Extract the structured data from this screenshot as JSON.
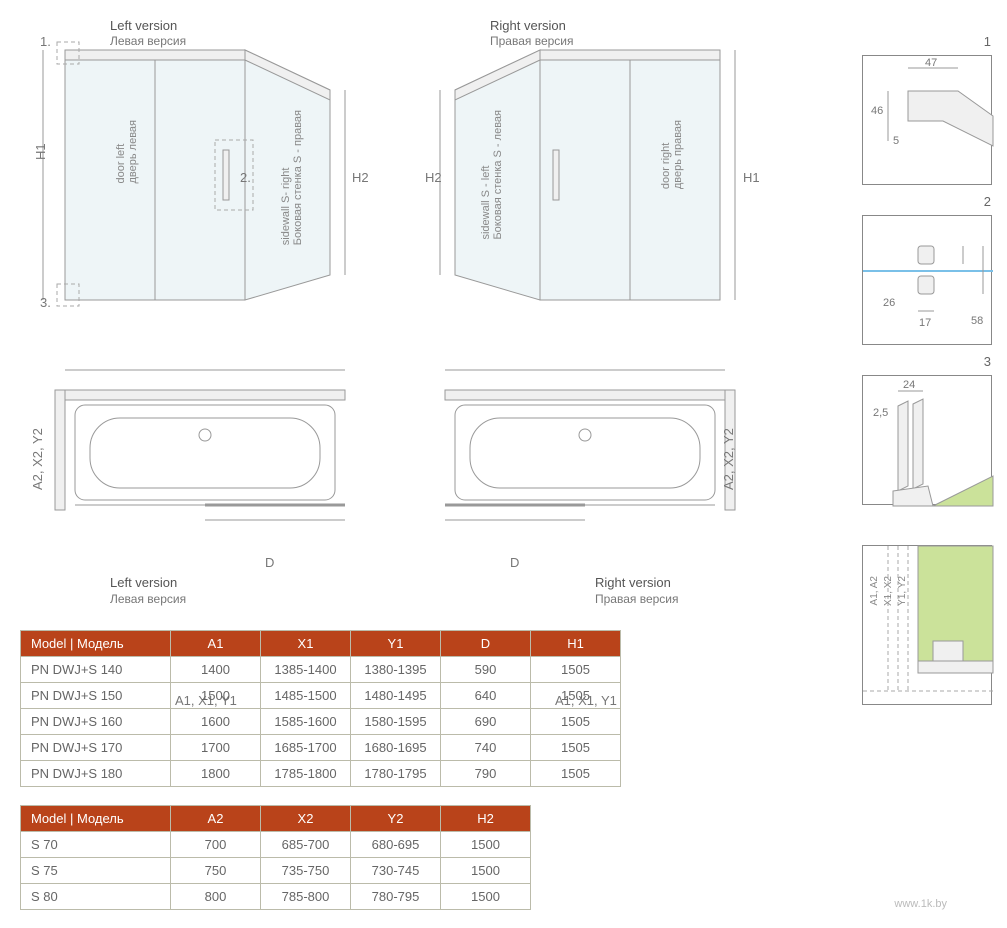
{
  "colors": {
    "header_bg": "#b9431a",
    "header_fg": "#ffffff",
    "border": "#bba790",
    "text": "#666666",
    "line": "#999999",
    "accent_green": "#cbe29a",
    "accent_blue": "#7ac0e8"
  },
  "labels": {
    "left_ver_en": "Left version",
    "left_ver_ru": "Левая версия",
    "right_ver_en": "Right version",
    "right_ver_ru": "Правая версия",
    "door_left_en": "door left",
    "door_left_ru": "дверь левая",
    "door_right_en": "door right",
    "door_right_ru": "дверь правая",
    "sidewall_r_en": "sidewall S- right",
    "sidewall_r_ru": "Боковая стенка S - правая",
    "sidewall_l_en": "sidewall S - left",
    "sidewall_l_ru": "Боковая стенка S - левая",
    "h1": "H1",
    "h2": "H2",
    "a1": "A1, X1, Y1",
    "a2": "A2, X2, Y2",
    "d": "D",
    "detail_a1a2": "A1, A2",
    "detail_x1x2": "X1, X2",
    "detail_y1y2": "Y1, Y2",
    "callout_1": "1.",
    "callout_2": "2.",
    "callout_3": "3."
  },
  "details": {
    "d1": {
      "num": "1",
      "dims": {
        "w": "47",
        "h": "46",
        "gap": "5"
      }
    },
    "d2": {
      "num": "2",
      "dims": {
        "h": "26",
        "w": "17",
        "total": "58"
      }
    },
    "d3": {
      "num": "3",
      "dims": {
        "w": "24",
        "t": "2,5"
      }
    },
    "d4": {
      "num": "",
      "dims": {}
    }
  },
  "tables": {
    "t1": {
      "headers": [
        "Model | Модель",
        "A1",
        "X1",
        "Y1",
        "D",
        "H1"
      ],
      "rows": [
        [
          "PN DWJ+S 140",
          "1400",
          "1385-1400",
          "1380-1395",
          "590",
          "1505"
        ],
        [
          "PN DWJ+S 150",
          "1500",
          "1485-1500",
          "1480-1495",
          "640",
          "1505"
        ],
        [
          "PN DWJ+S 160",
          "1600",
          "1585-1600",
          "1580-1595",
          "690",
          "1505"
        ],
        [
          "PN DWJ+S 170",
          "1700",
          "1685-1700",
          "1680-1695",
          "740",
          "1505"
        ],
        [
          "PN DWJ+S 180",
          "1800",
          "1785-1800",
          "1780-1795",
          "790",
          "1505"
        ]
      ]
    },
    "t2": {
      "headers": [
        "Model | Модель",
        "A2",
        "X2",
        "Y2",
        "H2"
      ],
      "rows": [
        [
          "S 70",
          "700",
          "685-700",
          "680-695",
          "1500"
        ],
        [
          "S 75",
          "750",
          "735-750",
          "730-745",
          "1500"
        ],
        [
          "S 80",
          "800",
          "785-800",
          "780-795",
          "1500"
        ]
      ]
    }
  },
  "watermark": "www.1k.by"
}
